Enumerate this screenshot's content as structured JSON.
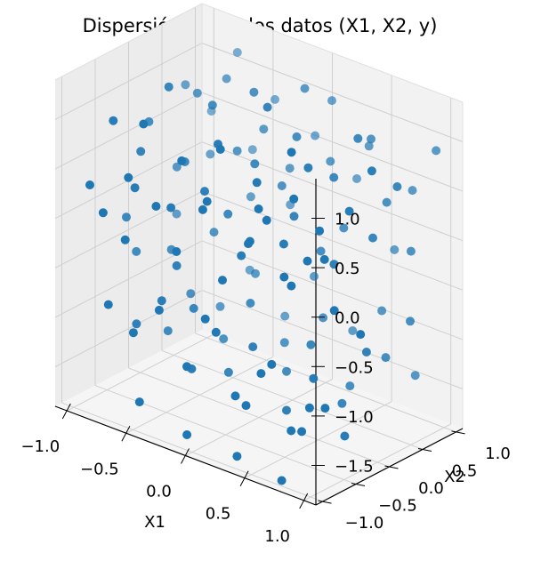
{
  "chart_data": {
    "type": "scatter",
    "title": "Dispersión 3D de los datos (X1, X2, y)",
    "xlabel": "X1",
    "ylabel": "X2",
    "zlabel": "",
    "xlim": [
      -1.1,
      1.1
    ],
    "ylim": [
      -1.1,
      1.1
    ],
    "zlim": [
      -1.9,
      1.4
    ],
    "xticks": [
      "−1.0",
      "−0.5",
      "0.0",
      "0.5",
      "1.0"
    ],
    "xtick_values": [
      -1.0,
      -0.5,
      0.0,
      0.5,
      1.0
    ],
    "yticks": [
      "−1.0",
      "−0.5",
      "0.0",
      "0.5",
      "1.0"
    ],
    "ytick_values": [
      -1.0,
      -0.5,
      0.0,
      0.5,
      1.0
    ],
    "zticks": [
      "−1.5",
      "−1.0",
      "−0.5",
      "0.0",
      "0.5",
      "1.0"
    ],
    "ztick_values": [
      -1.5,
      -1.0,
      -0.5,
      0.0,
      0.5,
      1.0
    ],
    "grid": true,
    "marker_color": "#1f77b4",
    "pane_color": "#f2f2f2",
    "grid_color": "#cfcfcf",
    "points": [
      {
        "x": -0.92,
        "y": -0.9,
        "z": 0.35
      },
      {
        "x": -0.78,
        "y": -0.95,
        "z": 0.15
      },
      {
        "x": -0.65,
        "y": -0.85,
        "z": -0.1
      },
      {
        "x": -0.55,
        "y": -0.98,
        "z": 0.62
      },
      {
        "x": -0.35,
        "y": -0.92,
        "z": 0.4
      },
      {
        "x": -0.15,
        "y": -0.97,
        "z": 0.05
      },
      {
        "x": 0.05,
        "y": -0.93,
        "z": 0.55
      },
      {
        "x": 0.25,
        "y": -0.99,
        "z": -0.05
      },
      {
        "x": 0.42,
        "y": -0.88,
        "z": 0.38
      },
      {
        "x": 0.6,
        "y": -0.95,
        "z": 0.7
      },
      {
        "x": 0.78,
        "y": -0.9,
        "z": 0.1
      },
      {
        "x": 0.95,
        "y": -0.96,
        "z": 0.45
      },
      {
        "x": -0.88,
        "y": -0.62,
        "z": 0.92
      },
      {
        "x": -0.72,
        "y": -0.58,
        "z": 0.3
      },
      {
        "x": -0.58,
        "y": -0.7,
        "z": 1.05
      },
      {
        "x": -0.45,
        "y": -0.52,
        "z": 0.2
      },
      {
        "x": -0.28,
        "y": -0.66,
        "z": 0.8
      },
      {
        "x": -0.1,
        "y": -0.6,
        "z": 0.45
      },
      {
        "x": 0.08,
        "y": -0.72,
        "z": 1.1
      },
      {
        "x": 0.22,
        "y": -0.55,
        "z": 0.15
      },
      {
        "x": 0.38,
        "y": -0.68,
        "z": 0.62
      },
      {
        "x": 0.55,
        "y": -0.6,
        "z": -0.02
      },
      {
        "x": 0.7,
        "y": -0.72,
        "z": 0.88
      },
      {
        "x": 0.88,
        "y": -0.58,
        "z": 0.3
      },
      {
        "x": -0.95,
        "y": -0.3,
        "z": -0.2
      },
      {
        "x": -0.8,
        "y": -0.35,
        "z": 0.55
      },
      {
        "x": -0.62,
        "y": -0.25,
        "z": 1.25
      },
      {
        "x": -0.48,
        "y": -0.38,
        "z": -0.45
      },
      {
        "x": -0.3,
        "y": -0.28,
        "z": 0.35
      },
      {
        "x": -0.12,
        "y": -0.4,
        "z": 0.95
      },
      {
        "x": 0.02,
        "y": -0.3,
        "z": -0.15
      },
      {
        "x": 0.18,
        "y": -0.35,
        "z": 0.68
      },
      {
        "x": 0.35,
        "y": -0.25,
        "z": 0.1
      },
      {
        "x": 0.5,
        "y": -0.4,
        "z": 1.15
      },
      {
        "x": 0.68,
        "y": -0.3,
        "z": 0.4
      },
      {
        "x": 0.85,
        "y": -0.38,
        "z": -0.3
      },
      {
        "x": -0.9,
        "y": -0.05,
        "z": 0.7
      },
      {
        "x": -0.75,
        "y": 0.02,
        "z": -0.55
      },
      {
        "x": -0.58,
        "y": -0.08,
        "z": 0.45
      },
      {
        "x": -0.42,
        "y": 0.05,
        "z": 1.05
      },
      {
        "x": -0.25,
        "y": -0.02,
        "z": 0.05
      },
      {
        "x": -0.08,
        "y": 0.08,
        "z": 0.6
      },
      {
        "x": 0.1,
        "y": -0.05,
        "z": 1.3
      },
      {
        "x": 0.28,
        "y": 0.03,
        "z": 0.25
      },
      {
        "x": 0.45,
        "y": -0.06,
        "z": 0.85
      },
      {
        "x": 0.6,
        "y": 0.06,
        "z": -0.1
      },
      {
        "x": 0.78,
        "y": -0.03,
        "z": 0.55
      },
      {
        "x": 0.93,
        "y": 0.04,
        "z": 1.0
      },
      {
        "x": -0.85,
        "y": 0.28,
        "z": 0.15
      },
      {
        "x": -0.7,
        "y": 0.32,
        "z": 0.95
      },
      {
        "x": -0.52,
        "y": 0.25,
        "z": -0.35
      },
      {
        "x": -0.38,
        "y": 0.35,
        "z": 0.5
      },
      {
        "x": -0.2,
        "y": 0.28,
        "z": 1.2
      },
      {
        "x": -0.02,
        "y": 0.38,
        "z": 0.3
      },
      {
        "x": 0.15,
        "y": 0.3,
        "z": 0.9
      },
      {
        "x": 0.32,
        "y": 0.36,
        "z": -0.2
      },
      {
        "x": 0.48,
        "y": 0.27,
        "z": 0.65
      },
      {
        "x": 0.65,
        "y": 0.33,
        "z": 1.1
      },
      {
        "x": 0.82,
        "y": 0.25,
        "z": 0.2
      },
      {
        "x": 0.97,
        "y": 0.35,
        "z": 0.75
      },
      {
        "x": -0.93,
        "y": 0.55,
        "z": 0.85
      },
      {
        "x": -0.76,
        "y": 0.62,
        "z": 0.2
      },
      {
        "x": -0.6,
        "y": 0.58,
        "z": 1.05
      },
      {
        "x": -0.44,
        "y": 0.66,
        "z": -0.1
      },
      {
        "x": -0.27,
        "y": 0.55,
        "z": 0.7
      },
      {
        "x": -0.1,
        "y": 0.64,
        "z": 0.35
      },
      {
        "x": 0.06,
        "y": 0.58,
        "z": 1.25
      },
      {
        "x": 0.22,
        "y": 0.68,
        "z": 0.55
      },
      {
        "x": 0.4,
        "y": 0.56,
        "z": 0.0
      },
      {
        "x": 0.58,
        "y": 0.65,
        "z": 0.95
      },
      {
        "x": 0.74,
        "y": 0.6,
        "z": 0.4
      },
      {
        "x": 0.9,
        "y": 0.68,
        "z": -0.05
      },
      {
        "x": -0.88,
        "y": 0.85,
        "z": 0.5
      },
      {
        "x": -0.7,
        "y": 0.92,
        "z": 1.15
      },
      {
        "x": -0.55,
        "y": 0.88,
        "z": 0.25
      },
      {
        "x": -0.4,
        "y": 0.95,
        "z": 0.8
      },
      {
        "x": -0.22,
        "y": 0.86,
        "z": -0.15
      },
      {
        "x": -0.05,
        "y": 0.93,
        "z": 0.6
      },
      {
        "x": 0.12,
        "y": 0.88,
        "z": 1.05
      },
      {
        "x": 0.28,
        "y": 0.97,
        "z": 0.3
      },
      {
        "x": 0.45,
        "y": 0.85,
        "z": 0.75
      },
      {
        "x": 0.62,
        "y": 0.93,
        "z": -0.25
      },
      {
        "x": 0.8,
        "y": 0.88,
        "z": 0.45
      },
      {
        "x": 0.96,
        "y": 0.95,
        "z": 0.9
      },
      {
        "x": -0.82,
        "y": -0.8,
        "z": -0.85
      },
      {
        "x": -0.62,
        "y": -0.78,
        "z": -1.05
      },
      {
        "x": -0.38,
        "y": -0.82,
        "z": -0.7
      },
      {
        "x": -0.18,
        "y": -0.76,
        "z": -1.2
      },
      {
        "x": 0.02,
        "y": -0.84,
        "z": -0.6
      },
      {
        "x": 0.24,
        "y": -0.78,
        "z": -1.3
      },
      {
        "x": 0.48,
        "y": -0.82,
        "z": -0.95
      },
      {
        "x": 0.7,
        "y": -0.76,
        "z": -1.45
      },
      {
        "x": 0.9,
        "y": -0.84,
        "z": -1.1
      },
      {
        "x": -0.78,
        "y": -0.45,
        "z": -1.15
      },
      {
        "x": -0.55,
        "y": -0.48,
        "z": -0.8
      },
      {
        "x": -0.32,
        "y": -0.44,
        "z": -1.4
      },
      {
        "x": -0.08,
        "y": -0.5,
        "z": -0.9
      },
      {
        "x": 0.15,
        "y": -0.46,
        "z": -1.55
      },
      {
        "x": 0.4,
        "y": -0.52,
        "z": -1.0
      },
      {
        "x": 0.62,
        "y": -0.46,
        "z": -1.6
      },
      {
        "x": 0.84,
        "y": -0.5,
        "z": -1.25
      },
      {
        "x": -0.7,
        "y": -0.12,
        "z": -1.3
      },
      {
        "x": -0.46,
        "y": -0.16,
        "z": -0.95
      },
      {
        "x": -0.2,
        "y": -0.1,
        "z": -1.5
      },
      {
        "x": 0.05,
        "y": -0.18,
        "z": -1.1
      },
      {
        "x": 0.3,
        "y": -0.12,
        "z": -1.65
      },
      {
        "x": 0.55,
        "y": -0.16,
        "z": -1.2
      },
      {
        "x": 0.78,
        "y": -0.1,
        "z": -1.7
      },
      {
        "x": -0.66,
        "y": 0.15,
        "z": -1.0
      },
      {
        "x": -0.4,
        "y": 0.18,
        "z": -1.35
      },
      {
        "x": -0.14,
        "y": 0.12,
        "z": -0.85
      },
      {
        "x": 0.12,
        "y": 0.2,
        "z": -1.45
      },
      {
        "x": 0.36,
        "y": 0.14,
        "z": -1.05
      },
      {
        "x": 0.6,
        "y": 0.18,
        "z": -1.55
      },
      {
        "x": 0.84,
        "y": 0.12,
        "z": -0.9
      },
      {
        "x": -0.58,
        "y": 0.45,
        "z": -1.2
      },
      {
        "x": -0.3,
        "y": 0.48,
        "z": -0.75
      },
      {
        "x": -0.02,
        "y": 0.42,
        "z": -1.3
      },
      {
        "x": 0.26,
        "y": 0.5,
        "z": -0.95
      },
      {
        "x": 0.52,
        "y": 0.44,
        "z": -1.5
      },
      {
        "x": 0.8,
        "y": 0.48,
        "z": -1.1
      },
      {
        "x": -0.5,
        "y": 0.75,
        "z": -0.9
      },
      {
        "x": -0.22,
        "y": 0.78,
        "z": -1.25
      },
      {
        "x": 0.06,
        "y": 0.72,
        "z": -0.7
      },
      {
        "x": 0.34,
        "y": 0.8,
        "z": -1.15
      },
      {
        "x": 0.62,
        "y": 0.74,
        "z": -0.8
      },
      {
        "x": 0.88,
        "y": 0.78,
        "z": -1.35
      },
      {
        "x": -0.95,
        "y": -0.15,
        "z": -0.6
      },
      {
        "x": -0.92,
        "y": 0.4,
        "z": -0.4
      },
      {
        "x": 0.97,
        "y": -0.2,
        "z": -0.55
      },
      {
        "x": 0.95,
        "y": 0.58,
        "z": -0.7
      },
      {
        "x": -0.05,
        "y": -0.99,
        "z": -1.75
      },
      {
        "x": 0.35,
        "y": -0.95,
        "z": -1.8
      },
      {
        "x": -0.45,
        "y": -0.99,
        "z": -1.6
      },
      {
        "x": 0.75,
        "y": -0.99,
        "z": -1.85
      }
    ]
  }
}
